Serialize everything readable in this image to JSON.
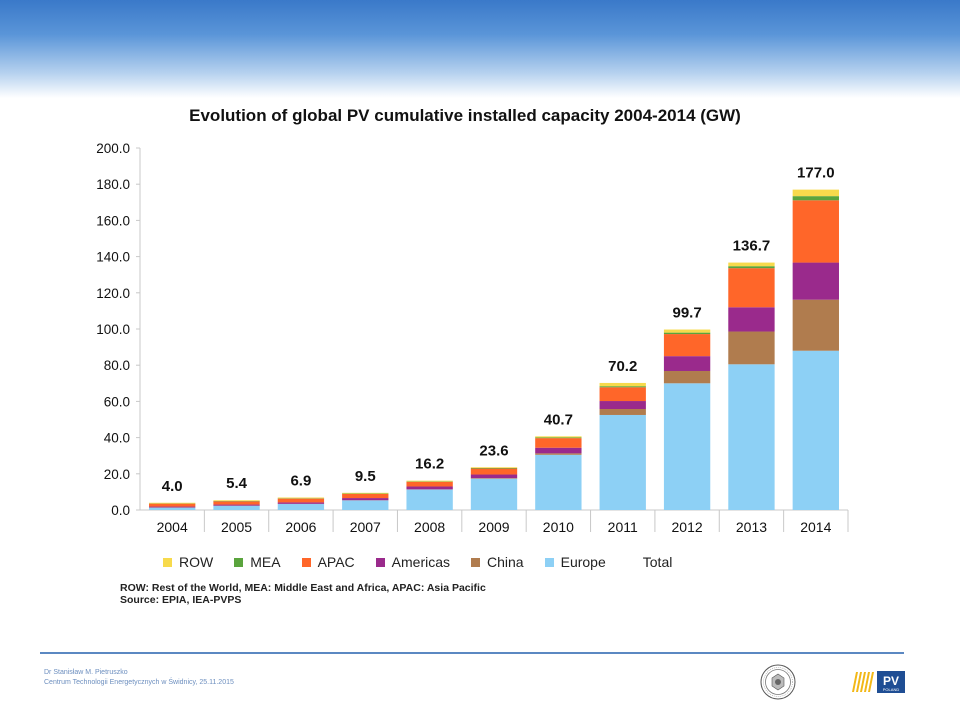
{
  "footer": {
    "author": "Dr Stanisław M. Pietruszko",
    "institution": "Centrum Technologii Energetycznych w Świdnicy, 25.11.2015"
  },
  "footnote": {
    "line1": "ROW: Rest of the World, MEA: Middle East and Africa, APAC: Asia Pacific",
    "line2": "Source: EPIA, IEA-PVPS"
  },
  "logos": {
    "seal_icon": "university-seal-icon",
    "pv_logo_text": "PV",
    "pv_logo_subtext": "POLAND"
  },
  "chart_data": {
    "type": "bar",
    "stacked": true,
    "title": "Evolution of global PV cumulative installed capacity 2004-2014 (GW)",
    "categories": [
      "2004",
      "2005",
      "2006",
      "2007",
      "2008",
      "2009",
      "2010",
      "2011",
      "2012",
      "2013",
      "2014"
    ],
    "ylim": [
      0,
      200
    ],
    "yticks": [
      "0.0",
      "20.0",
      "40.0",
      "60.0",
      "80.0",
      "100.0",
      "120.0",
      "140.0",
      "160.0",
      "180.0",
      "200.0"
    ],
    "grid": false,
    "legend_position": "bottom",
    "series": [
      {
        "name": "Europe",
        "color": "#8dd0f5",
        "values": [
          1.3,
          2.3,
          3.3,
          5.3,
          11.3,
          17.3,
          30.5,
          52.5,
          70.0,
          80.5,
          88.0
        ]
      },
      {
        "name": "China",
        "color": "#b07c4e",
        "values": [
          0.1,
          0.1,
          0.1,
          0.1,
          0.1,
          0.3,
          0.8,
          3.3,
          6.8,
          18.1,
          28.2
        ]
      },
      {
        "name": "Americas",
        "color": "#9a2a8c",
        "values": [
          0.5,
          0.6,
          0.8,
          1.2,
          1.6,
          2.0,
          3.1,
          4.4,
          8.2,
          13.4,
          20.5
        ]
      },
      {
        "name": "APAC",
        "color": "#ff6629",
        "values": [
          1.6,
          1.8,
          2.1,
          2.3,
          2.6,
          3.3,
          5.3,
          7.6,
          12.2,
          21.6,
          34.4
        ]
      },
      {
        "name": "MEA",
        "color": "#5aa43d",
        "values": [
          0.1,
          0.2,
          0.2,
          0.2,
          0.2,
          0.3,
          0.4,
          0.6,
          0.8,
          1.1,
          2.3
        ]
      },
      {
        "name": "ROW",
        "color": "#f7da4c",
        "values": [
          0.4,
          0.4,
          0.4,
          0.4,
          0.4,
          0.4,
          0.6,
          1.8,
          1.7,
          2.0,
          3.6
        ]
      }
    ],
    "totals": {
      "name": "Total",
      "values": [
        4.0,
        5.4,
        6.9,
        9.5,
        16.2,
        23.6,
        40.7,
        70.2,
        99.7,
        136.7,
        177.0
      ],
      "labels": [
        "4.0",
        "5.4",
        "6.9",
        "9.5",
        "16.2",
        "23.6",
        "40.7",
        "70.2",
        "99.7",
        "136.7",
        "177.0"
      ]
    },
    "legend_order": [
      "ROW",
      "MEA",
      "APAC",
      "Americas",
      "China",
      "Europe",
      "Total"
    ]
  }
}
